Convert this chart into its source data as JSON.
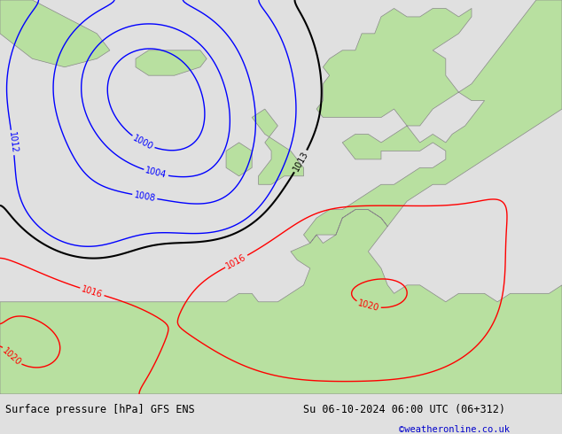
{
  "title_left": "Surface pressure [hPa] GFS ENS",
  "title_right": "Su 06-10-2024 06:00 UTC (06+312)",
  "credit": "©weatheronline.co.uk",
  "land_color": "#b8e0a0",
  "sea_color": "#c8c8cc",
  "coast_color": "#888888",
  "footer_bg": "#e0e0e0",
  "footer_text_color": "#000000",
  "credit_color": "#0000cc",
  "figsize": [
    6.34,
    4.9
  ],
  "dpi": 100,
  "lon_min": -45,
  "lon_max": 42,
  "lat_min": 25,
  "lat_max": 72,
  "contour_levels_blue": [
    1000,
    1004,
    1008,
    1012
  ],
  "contour_levels_black": [
    1013
  ],
  "contour_levels_red": [
    1016,
    1020
  ],
  "lw_blue": 1.0,
  "lw_black": 1.5,
  "lw_red": 1.0,
  "label_fontsize": 7
}
